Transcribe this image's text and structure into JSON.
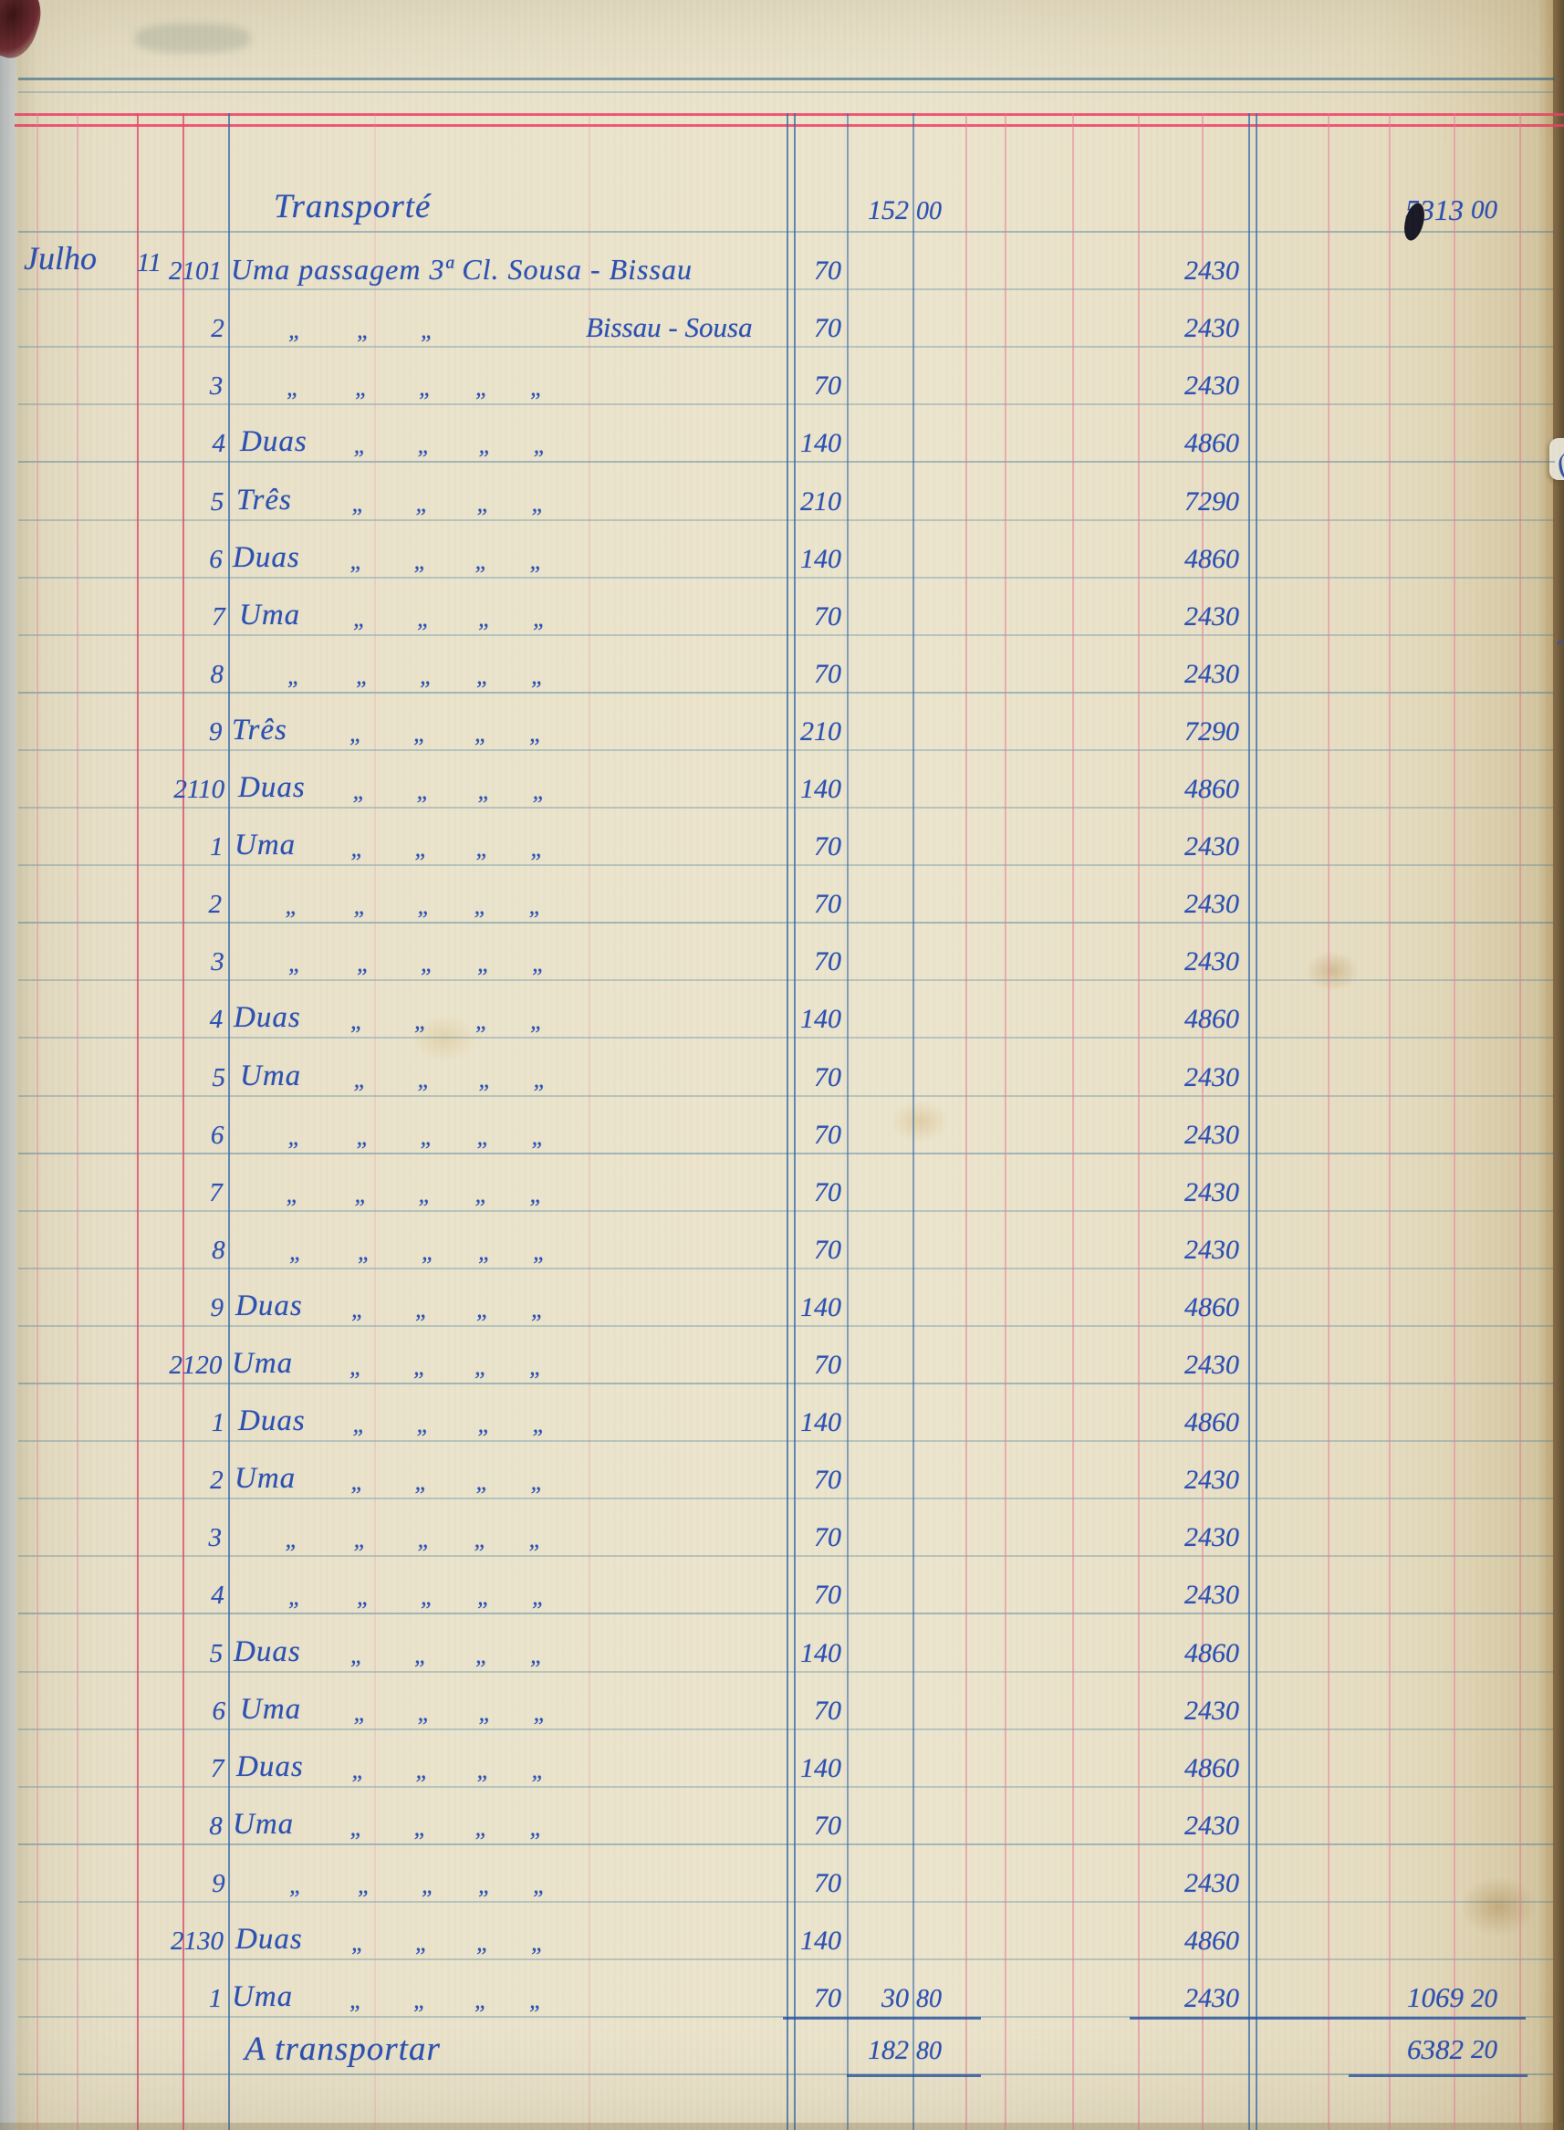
{
  "document": "handwritten ledger page",
  "colors": {
    "ink": "#2a4fb2",
    "rule_red": "#ee3f66",
    "rule_cyan": "#4a7da3",
    "paper": "#ece5cd"
  },
  "ledger": {
    "month": "Julho",
    "day": "11",
    "header": {
      "label": "Transporté",
      "amount": "152",
      "amount_cents": "00",
      "total": "5313",
      "total_cents": "00"
    },
    "footer": {
      "label": "A transportar",
      "amount": "182",
      "amount_cents": "80",
      "total": "6382",
      "total_cents": "20"
    },
    "ditto_mark": "„",
    "rows": [
      {
        "ticket": "2101",
        "desc": "Uma passagem 3ª Cl. Sousa - Bissau",
        "fare": "70",
        "value": "2430"
      },
      {
        "ticket": "2",
        "dittos": 3,
        "tail": "Bissau - Sousa",
        "fare": "70",
        "value": "2430"
      },
      {
        "ticket": "3",
        "dittos": 5,
        "fare": "70",
        "value": "2430"
      },
      {
        "ticket": "4",
        "word": "Duas",
        "dittos": 4,
        "fare": "140",
        "value": "4860"
      },
      {
        "ticket": "5",
        "word": "Três",
        "dittos": 4,
        "fare": "210",
        "value": "7290"
      },
      {
        "ticket": "6",
        "word": "Duas",
        "dittos": 4,
        "fare": "140",
        "value": "4860"
      },
      {
        "ticket": "7",
        "word": "Uma",
        "dittos": 4,
        "fare": "70",
        "value": "2430"
      },
      {
        "ticket": "8",
        "dittos": 5,
        "fare": "70",
        "value": "2430"
      },
      {
        "ticket": "9",
        "word": "Três",
        "dittos": 4,
        "fare": "210",
        "value": "7290"
      },
      {
        "ticket": "2110",
        "word": "Duas",
        "dittos": 4,
        "fare": "140",
        "value": "4860"
      },
      {
        "ticket": "1",
        "word": "Uma",
        "dittos": 4,
        "fare": "70",
        "value": "2430"
      },
      {
        "ticket": "2",
        "dittos": 5,
        "fare": "70",
        "value": "2430"
      },
      {
        "ticket": "3",
        "dittos": 5,
        "fare": "70",
        "value": "2430"
      },
      {
        "ticket": "4",
        "word": "Duas",
        "dittos": 4,
        "fare": "140",
        "value": "4860"
      },
      {
        "ticket": "5",
        "word": "Uma",
        "dittos": 4,
        "fare": "70",
        "value": "2430"
      },
      {
        "ticket": "6",
        "dittos": 5,
        "fare": "70",
        "value": "2430"
      },
      {
        "ticket": "7",
        "dittos": 5,
        "fare": "70",
        "value": "2430"
      },
      {
        "ticket": "8",
        "dittos": 5,
        "fare": "70",
        "value": "2430"
      },
      {
        "ticket": "9",
        "word": "Duas",
        "dittos": 4,
        "fare": "140",
        "value": "4860"
      },
      {
        "ticket": "2120",
        "word": "Uma",
        "dittos": 4,
        "fare": "70",
        "value": "2430"
      },
      {
        "ticket": "1",
        "word": "Duas",
        "dittos": 4,
        "fare": "140",
        "value": "4860"
      },
      {
        "ticket": "2",
        "word": "Uma",
        "dittos": 4,
        "fare": "70",
        "value": "2430"
      },
      {
        "ticket": "3",
        "dittos": 5,
        "fare": "70",
        "value": "2430"
      },
      {
        "ticket": "4",
        "dittos": 5,
        "fare": "70",
        "value": "2430"
      },
      {
        "ticket": "5",
        "word": "Duas",
        "dittos": 4,
        "fare": "140",
        "value": "4860"
      },
      {
        "ticket": "6",
        "word": "Uma",
        "dittos": 4,
        "fare": "70",
        "value": "2430"
      },
      {
        "ticket": "7",
        "word": "Duas",
        "dittos": 4,
        "fare": "140",
        "value": "4860"
      },
      {
        "ticket": "8",
        "word": "Uma",
        "dittos": 4,
        "fare": "70",
        "value": "2430"
      },
      {
        "ticket": "9",
        "dittos": 5,
        "fare": "70",
        "value": "2430"
      },
      {
        "ticket": "2130",
        "word": "Duas",
        "dittos": 4,
        "fare": "140",
        "value": "4860"
      },
      {
        "ticket": "1",
        "word": "Uma",
        "dittos": 4,
        "fare": "70",
        "value": "2430",
        "sub": "30",
        "sub_cents": "80",
        "total": "1069",
        "total_cents": "20"
      }
    ]
  }
}
